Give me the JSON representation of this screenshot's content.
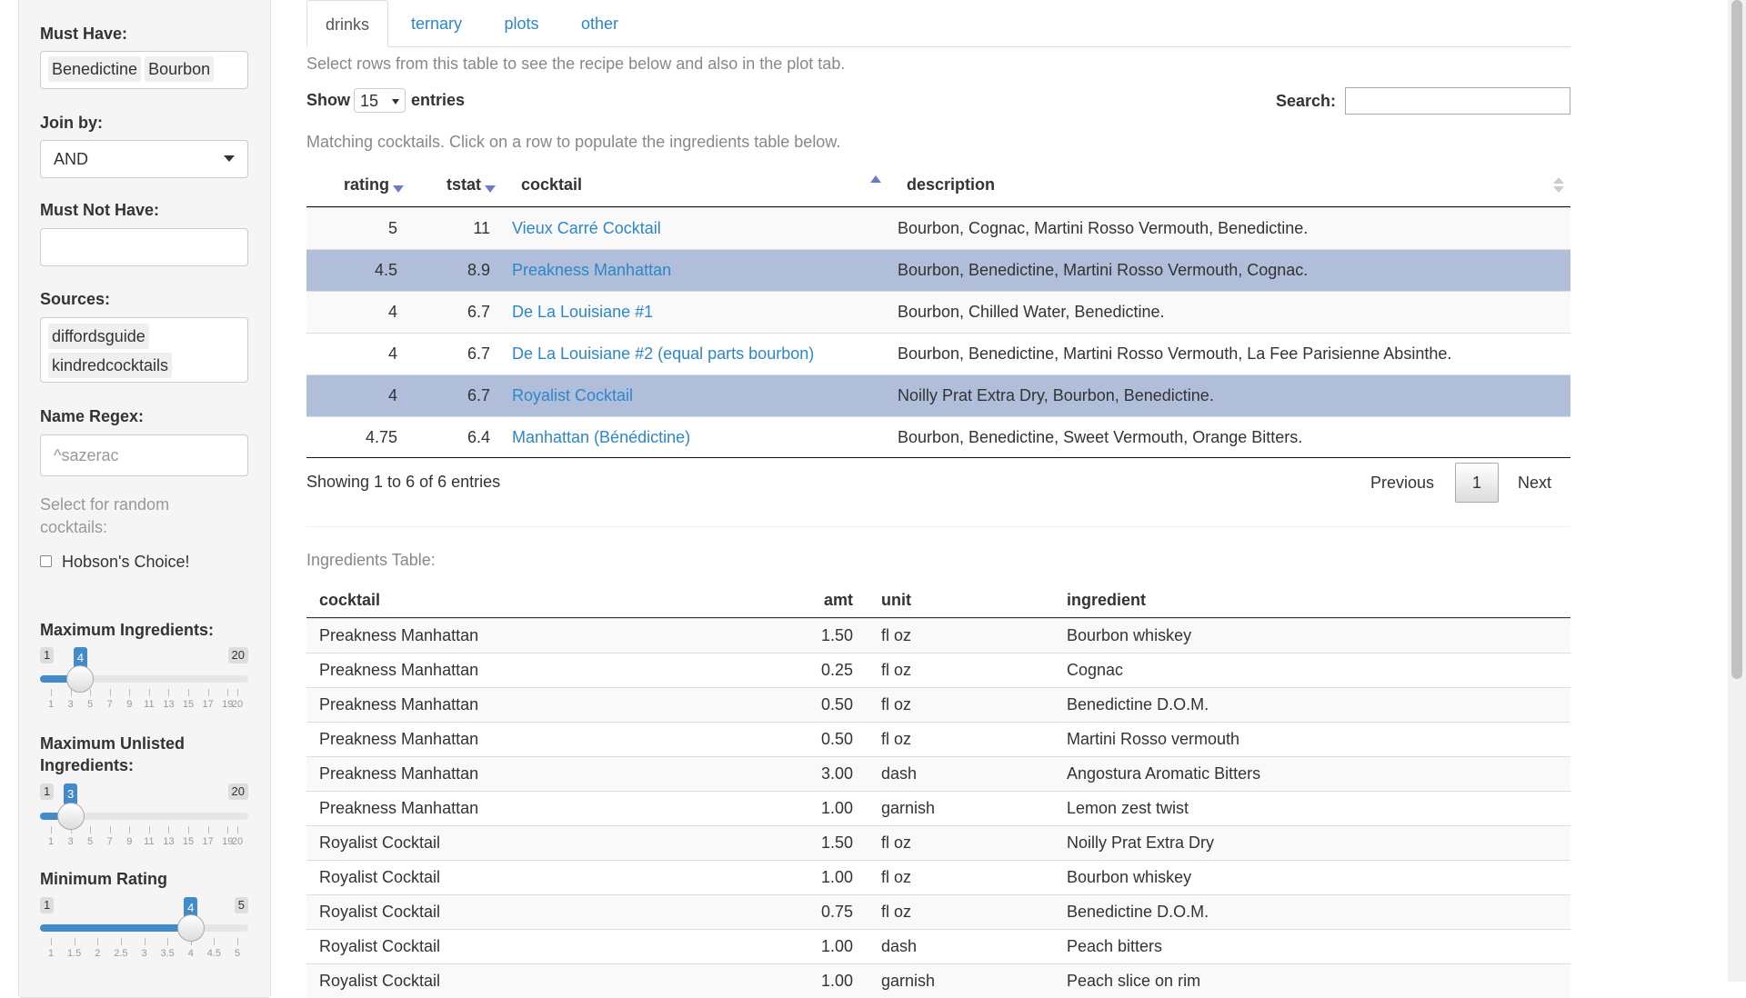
{
  "sidebar": {
    "must_have": {
      "label": "Must Have:",
      "tags": [
        "Benedictine",
        "Bourbon"
      ]
    },
    "join_by": {
      "label": "Join by:",
      "value": "AND"
    },
    "must_not_have": {
      "label": "Must Not Have:"
    },
    "sources": {
      "label": "Sources:",
      "tags": [
        "diffordsguide",
        "kindredcocktails"
      ]
    },
    "name_regex": {
      "label": "Name Regex:",
      "placeholder": "^sazerac"
    },
    "random": {
      "note": "Select for random cocktails:",
      "checkbox": "Hobson's Choice!"
    },
    "sliders": [
      {
        "label": "Maximum Ingredients:",
        "min": 1,
        "max": 20,
        "value": 4,
        "ticks": [
          1,
          3,
          5,
          7,
          9,
          11,
          13,
          15,
          17,
          19,
          20
        ]
      },
      {
        "label": "Maximum Unlisted Ingredients:",
        "min": 1,
        "max": 20,
        "value": 3,
        "ticks": [
          1,
          3,
          5,
          7,
          9,
          11,
          13,
          15,
          17,
          19,
          20
        ]
      },
      {
        "label": "Minimum Rating",
        "min": 1,
        "max": 5,
        "value": 4,
        "ticks": [
          1,
          1.5,
          2,
          2.5,
          3,
          3.5,
          4,
          4.5,
          5
        ]
      }
    ]
  },
  "tabs": [
    "drinks",
    "ternary",
    "plots",
    "other"
  ],
  "drinks": {
    "intro": "Select rows from this table to see the recipe below and also in the plot tab.",
    "show_label": "Show",
    "page_length": 15,
    "entries_label": "entries",
    "search_label": "Search:",
    "caption": "Matching cocktails. Click on a row to populate the ingredients table below.",
    "columns": [
      "rating",
      "tstat",
      "cocktail",
      "description"
    ],
    "rows": [
      [
        5,
        11,
        "Vieux Carré Cocktail",
        "Bourbon, Cognac, Martini Rosso Vermouth, Benedictine."
      ],
      [
        4.5,
        8.9,
        "Preakness Manhattan",
        "Bourbon, Benedictine, Martini Rosso Vermouth, Cognac."
      ],
      [
        4,
        6.7,
        "De La Louisiane #1",
        "Bourbon, Chilled Water, Benedictine."
      ],
      [
        4,
        6.7,
        "De La Louisiane #2 (equal parts bourbon)",
        "Bourbon, Benedictine, Martini Rosso Vermouth, La Fee Parisienne Absinthe."
      ],
      [
        4,
        6.7,
        "Royalist Cocktail",
        "Noilly Prat Extra Dry, Bourbon, Benedictine."
      ],
      [
        4.75,
        6.4,
        "Manhattan (Bénédictine)",
        "Bourbon, Benedictine, Sweet Vermouth, Orange Bitters."
      ]
    ],
    "selected": [
      1,
      4
    ],
    "info": "Showing 1 to 6 of 6 entries",
    "pagination": [
      "Previous",
      "1",
      "Next"
    ]
  },
  "ingredients": {
    "title": "Ingredients Table:",
    "columns": [
      "cocktail",
      "amt",
      "unit",
      "ingredient"
    ],
    "rows": [
      [
        "Preakness Manhattan",
        "1.50",
        "fl oz",
        "Bourbon whiskey"
      ],
      [
        "Preakness Manhattan",
        "0.25",
        "fl oz",
        "Cognac"
      ],
      [
        "Preakness Manhattan",
        "0.50",
        "fl oz",
        "Benedictine D.O.M."
      ],
      [
        "Preakness Manhattan",
        "0.50",
        "fl oz",
        "Martini Rosso vermouth"
      ],
      [
        "Preakness Manhattan",
        "3.00",
        "dash",
        "Angostura Aromatic Bitters"
      ],
      [
        "Preakness Manhattan",
        "1.00",
        "garnish",
        "Lemon zest twist"
      ],
      [
        "Royalist Cocktail",
        "1.50",
        "fl oz",
        "Noilly Prat Extra Dry"
      ],
      [
        "Royalist Cocktail",
        "1.00",
        "fl oz",
        "Bourbon whiskey"
      ],
      [
        "Royalist Cocktail",
        "0.75",
        "fl oz",
        "Benedictine D.O.M."
      ],
      [
        "Royalist Cocktail",
        "1.00",
        "dash",
        "Peach bitters"
      ],
      [
        "Royalist Cocktail",
        "1.00",
        "garnish",
        "Peach slice on rim"
      ]
    ]
  }
}
